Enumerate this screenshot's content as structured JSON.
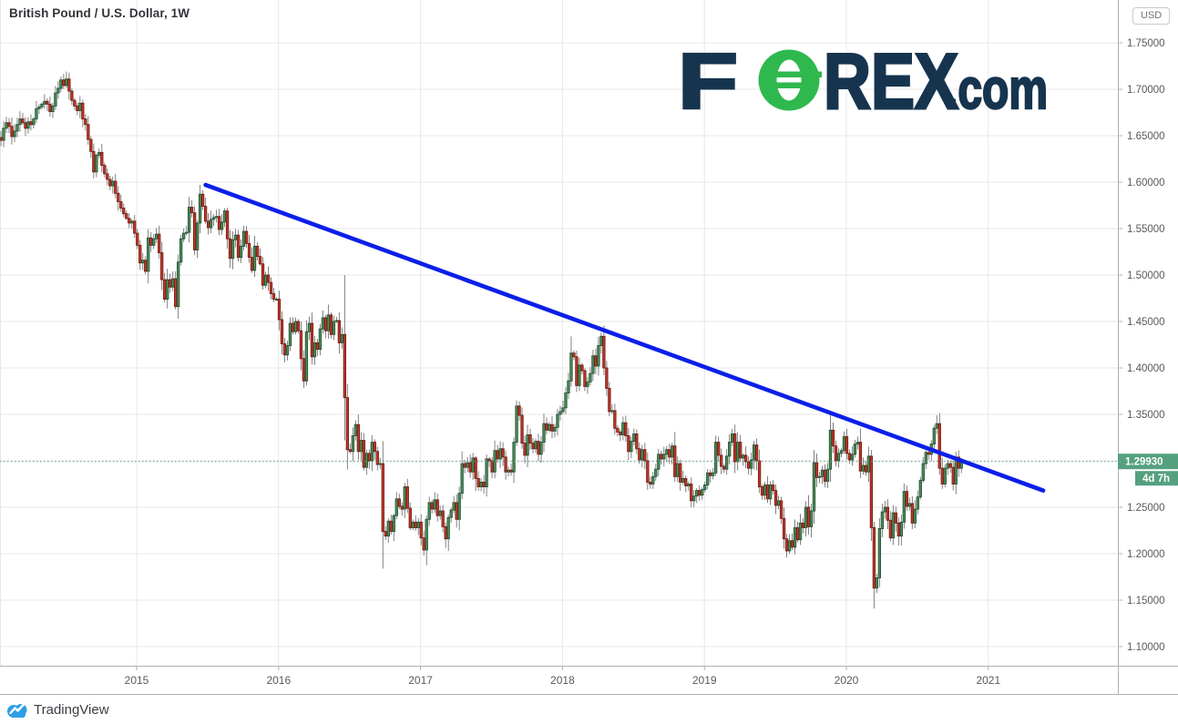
{
  "header": {
    "title": "British Pound / U.S. Dollar, 1W"
  },
  "price_axis": {
    "currency_button": "USD"
  },
  "footer": {
    "brand": "TradingView"
  },
  "logo": {
    "f": "F",
    "rex": "REX",
    "suffix": ".com",
    "navy": "#16344e",
    "green": "#2eb84d"
  },
  "chart_data": {
    "type": "candlestick",
    "title": "British Pound / U.S. Dollar, 1W",
    "symbol": "GBP/USD",
    "timeframe": "1W",
    "quote_currency": "USD",
    "y_axis": {
      "labels": [
        "1.75000",
        "1.70000",
        "1.65000",
        "1.60000",
        "1.55000",
        "1.50000",
        "1.45000",
        "1.40000",
        "1.35000",
        "1.30000",
        "1.25000",
        "1.20000",
        "1.15000",
        "1.10000"
      ],
      "values": [
        1.75,
        1.7,
        1.65,
        1.6,
        1.55,
        1.5,
        1.45,
        1.4,
        1.35,
        1.3,
        1.25,
        1.2,
        1.15,
        1.1
      ],
      "min": 1.1,
      "max": 1.75,
      "step": 0.05,
      "grid": true
    },
    "x_axis": {
      "years": [
        "2015",
        "2016",
        "2017",
        "2018",
        "2019",
        "2020",
        "2021"
      ],
      "grid": true
    },
    "last_price": 1.2993,
    "last_price_label": "1.29930",
    "countdown": "4d 7h",
    "first_open": 1.637,
    "weekly_closes": [
      1.641,
      1.648,
      1.645,
      1.658,
      1.664,
      1.66,
      1.649,
      1.655,
      1.662,
      1.668,
      1.664,
      1.658,
      1.665,
      1.662,
      1.668,
      1.679,
      1.681,
      1.684,
      1.687,
      1.684,
      1.676,
      1.682,
      1.696,
      1.701,
      1.71,
      1.704,
      1.711,
      1.698,
      1.688,
      1.682,
      1.677,
      1.685,
      1.668,
      1.662,
      1.646,
      1.633,
      1.611,
      1.629,
      1.632,
      1.618,
      1.609,
      1.603,
      1.596,
      1.601,
      1.588,
      1.579,
      1.572,
      1.566,
      1.561,
      1.556,
      1.558,
      1.545,
      1.532,
      1.513,
      1.516,
      1.504,
      1.54,
      1.532,
      1.539,
      1.544,
      1.524,
      1.495,
      1.474,
      1.495,
      1.487,
      1.496,
      1.466,
      1.514,
      1.539,
      1.545,
      1.546,
      1.573,
      1.567,
      1.527,
      1.556,
      1.587,
      1.574,
      1.558,
      1.551,
      1.56,
      1.562,
      1.563,
      1.549,
      1.557,
      1.569,
      1.539,
      1.518,
      1.538,
      1.543,
      1.519,
      1.531,
      1.547,
      1.534,
      1.519,
      1.505,
      1.531,
      1.52,
      1.512,
      1.489,
      1.5,
      1.492,
      1.48,
      1.474,
      1.474,
      1.452,
      1.426,
      1.414,
      1.424,
      1.448,
      1.439,
      1.45,
      1.44,
      1.41,
      1.386,
      1.439,
      1.448,
      1.412,
      1.427,
      1.42,
      1.442,
      1.454,
      1.44,
      1.457,
      1.436,
      1.45,
      1.451,
      1.427,
      1.436,
      1.368,
      1.312,
      1.31,
      1.327,
      1.339,
      1.31,
      1.322,
      1.293,
      1.308,
      1.3,
      1.32,
      1.31,
      1.296,
      1.297,
      1.224,
      1.219,
      1.235,
      1.224,
      1.241,
      1.259,
      1.251,
      1.248,
      1.272,
      1.249,
      1.228,
      1.234,
      1.228,
      1.234,
      1.217,
      1.204,
      1.237,
      1.255,
      1.248,
      1.258,
      1.241,
      1.246,
      1.229,
      1.216,
      1.239,
      1.247,
      1.255,
      1.237,
      1.265,
      1.297,
      1.293,
      1.298,
      1.288,
      1.303,
      1.281,
      1.272,
      1.277,
      1.272,
      1.302,
      1.3,
      1.288,
      1.311,
      1.302,
      1.313,
      1.304,
      1.288,
      1.29,
      1.288,
      1.32,
      1.359,
      1.349,
      1.319,
      1.306,
      1.328,
      1.319,
      1.313,
      1.321,
      1.307,
      1.32,
      1.34,
      1.333,
      1.339,
      1.332,
      1.336,
      1.35,
      1.353,
      1.357,
      1.373,
      1.386,
      1.416,
      1.412,
      1.381,
      1.403,
      1.397,
      1.38,
      1.385,
      1.394,
      1.413,
      1.402,
      1.424,
      1.434,
      1.4,
      1.378,
      1.353,
      1.354,
      1.335,
      1.331,
      1.328,
      1.341,
      1.327,
      1.31,
      1.321,
      1.329,
      1.313,
      1.301,
      1.312,
      1.3,
      1.277,
      1.275,
      1.283,
      1.291,
      1.307,
      1.302,
      1.307,
      1.312,
      1.304,
      1.316,
      1.283,
      1.297,
      1.277,
      1.281,
      1.273,
      1.275,
      1.257,
      1.262,
      1.268,
      1.263,
      1.269,
      1.274,
      1.287,
      1.284,
      1.287,
      1.32,
      1.306,
      1.294,
      1.291,
      1.305,
      1.32,
      1.329,
      1.299,
      1.32,
      1.303,
      1.306,
      1.299,
      1.292,
      1.301,
      1.317,
      1.3,
      1.272,
      1.263,
      1.274,
      1.259,
      1.274,
      1.268,
      1.252,
      1.257,
      1.238,
      1.216,
      1.203,
      1.214,
      1.207,
      1.228,
      1.215,
      1.233,
      1.228,
      1.25,
      1.229,
      1.246,
      1.298,
      1.282,
      1.283,
      1.29,
      1.278,
      1.291,
      1.333,
      1.316,
      1.3,
      1.308,
      1.311,
      1.326,
      1.308,
      1.301,
      1.307,
      1.318,
      1.32,
      1.289,
      1.295,
      1.288,
      1.305,
      1.228,
      1.163,
      1.174,
      1.227,
      1.245,
      1.25,
      1.236,
      1.217,
      1.244,
      1.233,
      1.219,
      1.234,
      1.267,
      1.251,
      1.254,
      1.233,
      1.248,
      1.261,
      1.279,
      1.297,
      1.309,
      1.307,
      1.318,
      1.335,
      1.34,
      1.292,
      1.275,
      1.292,
      1.297,
      1.293,
      1.275,
      1.304,
      1.292,
      1.2993
    ],
    "wick_overrides": {
      "26": {
        "h": 1.719
      },
      "75": {
        "h": 1.597
      },
      "128": {
        "h": 1.5,
        "l": 1.322
      },
      "142": {
        "l": 1.184
      },
      "157": {
        "l": 1.198
      },
      "191": {
        "h": 1.365
      },
      "211": {
        "h": 1.434
      },
      "222": {
        "h": 1.438
      },
      "290": {
        "l": 1.196
      },
      "306": {
        "h": 1.351
      },
      "322": {
        "l": 1.141
      },
      "345": {
        "h": 1.349
      }
    },
    "trendline": {
      "from_week": 77,
      "from_price": 1.597,
      "to_week": 384,
      "to_price": 1.268
    },
    "colors": {
      "up_fill": "#4f9057",
      "up_border": "#225437",
      "down_fill": "#c0392b",
      "down_border": "#7a1c13",
      "wick": "#737375",
      "trendline": "#0b1fe8",
      "grid": "#e7e7e7",
      "axis_border": "#aeb1b8",
      "label_bg": "#55a07f",
      "tv_blue": "#2e9fe6"
    }
  }
}
